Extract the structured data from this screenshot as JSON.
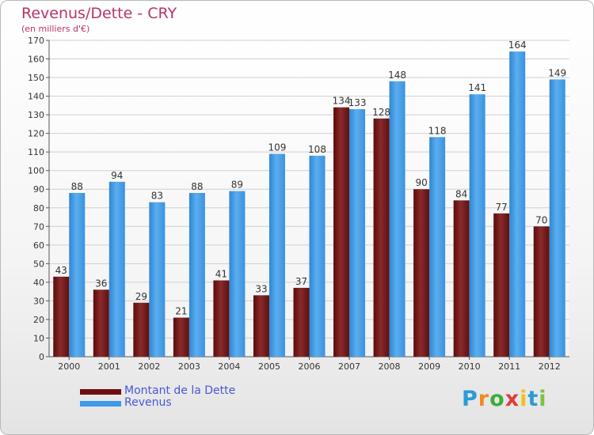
{
  "header": {
    "title": "Revenus/Dette - CRY",
    "subtitle": "(en milliers d'€)"
  },
  "chart_data": {
    "type": "bar",
    "title": "Revenus/Dette - CRY",
    "subtitle": "(en milliers d'€)",
    "categories": [
      "2000",
      "2001",
      "2002",
      "2003",
      "2004",
      "2005",
      "2006",
      "2007",
      "2008",
      "2009",
      "2010",
      "2011",
      "2012"
    ],
    "series": [
      {
        "name": "Montant de la Dette",
        "color": "#7a1c1c",
        "values": [
          43,
          36,
          29,
          21,
          41,
          33,
          37,
          134,
          128,
          90,
          84,
          77,
          70
        ]
      },
      {
        "name": "Revenus",
        "color": "#3d9ae8",
        "values": [
          88,
          94,
          83,
          88,
          89,
          109,
          108,
          133,
          148,
          118,
          141,
          164,
          149
        ]
      }
    ],
    "ylim": [
      0,
      170
    ],
    "ytick_step": 10,
    "grid": true,
    "legend_position": "bottom-left",
    "data_labels": true
  },
  "legend": [
    {
      "label": "Montant de la Dette",
      "color": "#6e0f0f"
    },
    {
      "label": "Revenus",
      "color": "#3d9ae8"
    }
  ],
  "logo": {
    "letters": [
      "P",
      "r",
      "o",
      "x",
      "i",
      "t",
      "i"
    ],
    "colors": [
      "#2c9ad6",
      "#f08a24",
      "#3aae3a",
      "#e23b3b",
      "#f0c020",
      "#2c9ad6",
      "#7cc242"
    ]
  }
}
